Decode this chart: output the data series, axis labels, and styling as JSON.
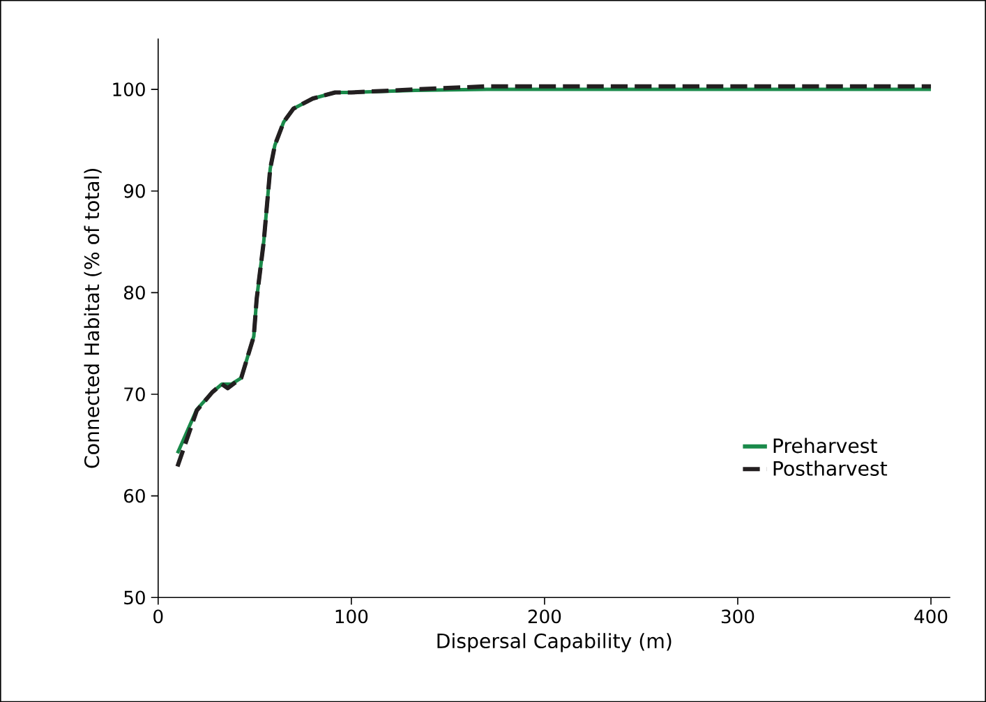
{
  "chart_data": {
    "type": "line",
    "xlabel": "Dispersal Capability (m)",
    "ylabel": "Connected Habitat (% of total)",
    "xlim": [
      0,
      410
    ],
    "ylim": [
      50,
      105
    ],
    "xticks": [
      0,
      100,
      200,
      300,
      400
    ],
    "yticks": [
      50,
      60,
      70,
      80,
      90,
      100
    ],
    "legend": "right",
    "grid": false,
    "marker": "none",
    "series": [
      {
        "name": "Preharvest",
        "color": "#1a8a4a",
        "line_style": "solid",
        "x": [
          10,
          20,
          28,
          33,
          38,
          43,
          49.5,
          51,
          54.7,
          58,
          60.4,
          65,
          70,
          80,
          91.6,
          100,
          133,
          170,
          200,
          300,
          400
        ],
        "values": [
          64.2,
          68.5,
          70.2,
          71,
          71,
          71.6,
          75.7,
          79.4,
          85.1,
          92.2,
          94.5,
          96.8,
          98.1,
          99.1,
          99.7,
          99.7,
          99.9,
          100,
          100,
          100,
          100
        ]
      },
      {
        "name": "Postharvest",
        "color": "#231f20",
        "line_style": "dashed",
        "x": [
          10,
          20,
          28,
          33,
          36,
          43,
          49.5,
          51,
          54.7,
          58,
          60.4,
          65,
          70,
          80,
          91.6,
          100,
          133,
          170,
          200,
          300,
          400
        ],
        "values": [
          62.9,
          68.4,
          70.2,
          71,
          70.6,
          71.6,
          75.7,
          79.4,
          85.1,
          92.2,
          94.5,
          96.8,
          98.1,
          99.1,
          99.7,
          99.7,
          100,
          100.3,
          100.3,
          100.3,
          100.3
        ]
      }
    ]
  }
}
